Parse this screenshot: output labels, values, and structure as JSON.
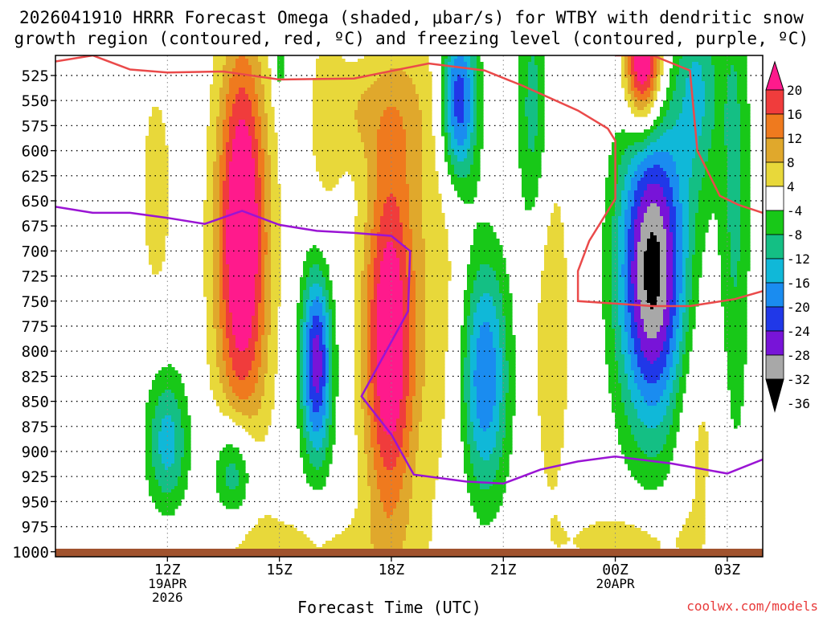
{
  "title_line1": "2026041910 HRRR Forecast Omega (shaded, μbar/s) for WTBY with dendritic snow",
  "title_line2": "growth region (contoured, red, ºC) and freezing level (contoured, purple, ºC)",
  "xlabel": "Forecast Time (UTC)",
  "credit": "coolwx.com/models",
  "chart_data": {
    "type": "heatmap",
    "x_hours": [
      9.0,
      12.0,
      15.0,
      18.0,
      21.0,
      24.0,
      27.0,
      27.95
    ],
    "y_pressure_hPa": [
      505,
      1005
    ],
    "y_ticks": [
      525,
      550,
      575,
      600,
      625,
      650,
      675,
      700,
      725,
      750,
      775,
      800,
      825,
      850,
      875,
      900,
      925,
      950,
      975,
      1000
    ],
    "x_ticks": [
      {
        "hour": 12,
        "lines": [
          "12Z",
          "19APR",
          "2026"
        ]
      },
      {
        "hour": 15,
        "lines": [
          "15Z"
        ]
      },
      {
        "hour": 18,
        "lines": [
          "18Z"
        ]
      },
      {
        "hour": 21,
        "lines": [
          "21Z"
        ]
      },
      {
        "hour": 24,
        "lines": [
          "00Z",
          "20APR"
        ]
      },
      {
        "hour": 27,
        "lines": [
          "03Z"
        ]
      }
    ],
    "colorbar": {
      "labels": [
        "20",
        "16",
        "12",
        "8",
        "4",
        "-4",
        "-8",
        "-12",
        "-16",
        "-20",
        "-24",
        "-28",
        "-32",
        "-36"
      ],
      "colors": [
        "#ff1a8c",
        "#f03c3c",
        "#ef7a1e",
        "#e0a82c",
        "#e8d83a",
        "#ffffff",
        "#18c818",
        "#14bf84",
        "#10b8d8",
        "#1a8cf0",
        "#2038e8",
        "#7814d8",
        "#a8a8a8",
        "#000000"
      ]
    },
    "omega_fields": [
      {
        "name": "upper-updraft-west",
        "x": 14.0,
        "p": 700,
        "sx": 0.55,
        "sp": 150,
        "amp": 21
      },
      {
        "name": "upper-updraft-west-core",
        "x": 14.0,
        "p": 660,
        "sx": 0.35,
        "sp": 110,
        "amp": 8
      },
      {
        "name": "updraft-18z",
        "x": 17.95,
        "p": 790,
        "sx": 0.5,
        "sp": 130,
        "amp": 26
      },
      {
        "name": "updraft-18z-upper",
        "x": 18.3,
        "p": 560,
        "sx": 0.55,
        "sp": 60,
        "amp": 6
      },
      {
        "name": "updraft-12z-col",
        "x": 11.7,
        "p": 640,
        "sx": 0.3,
        "sp": 80,
        "amp": 7
      },
      {
        "name": "updraft-17z-band",
        "x": 17.1,
        "p": 560,
        "sx": 0.55,
        "sp": 40,
        "amp": 6
      },
      {
        "name": "updraft-top-00z",
        "x": 24.75,
        "p": 515,
        "sx": 0.35,
        "sp": 45,
        "amp": 30
      },
      {
        "name": "updraft-low-2230",
        "x": 22.3,
        "p": 780,
        "sx": 0.35,
        "sp": 130,
        "amp": 8
      },
      {
        "name": "updraft-low-2000",
        "x": 19.3,
        "p": 700,
        "sx": 0.5,
        "sp": 220,
        "amp": 6
      },
      {
        "name": "updraft-low-2600",
        "x": 26.2,
        "p": 880,
        "sx": 0.45,
        "sp": 90,
        "amp": 6
      },
      {
        "name": "updraft-low-2400",
        "x": 24.3,
        "p": 990,
        "sx": 1.2,
        "sp": 25,
        "amp": 7
      },
      {
        "name": "updraft-low-1500",
        "x": 15.5,
        "p": 995,
        "sx": 2.0,
        "sp": 30,
        "amp": 5
      },
      {
        "name": "updraft-1600",
        "x": 16.2,
        "p": 590,
        "sx": 0.4,
        "sp": 120,
        "amp": 5
      },
      {
        "name": "downdraft-1600",
        "x": 16.0,
        "p": 810,
        "sx": 0.3,
        "sp": 70,
        "amp": -27
      },
      {
        "name": "downdraft-0015",
        "x": 25.0,
        "p": 720,
        "sx": 0.65,
        "sp": 110,
        "amp": -34
      },
      {
        "name": "downdraft-2030",
        "x": 20.5,
        "p": 825,
        "sx": 0.45,
        "sp": 85,
        "amp": -20
      },
      {
        "name": "downdraft-1930-upper",
        "x": 19.8,
        "p": 550,
        "sx": 0.35,
        "sp": 60,
        "amp": -25
      },
      {
        "name": "downdraft-sw",
        "x": 12.0,
        "p": 890,
        "sx": 0.4,
        "sp": 50,
        "amp": -14
      },
      {
        "name": "downdraft-1400",
        "x": 13.8,
        "p": 920,
        "sx": 0.4,
        "sp": 40,
        "amp": -16
      },
      {
        "name": "downdraft-2130",
        "x": 21.8,
        "p": 560,
        "sx": 0.3,
        "sp": 90,
        "amp": -10
      },
      {
        "name": "downdraft-0230",
        "x": 27.2,
        "p": 640,
        "sx": 0.3,
        "sp": 200,
        "amp": -9
      },
      {
        "name": "downdraft-0030-upper",
        "x": 26.2,
        "p": 540,
        "sx": 0.4,
        "sp": 70,
        "amp": -12
      },
      {
        "name": "downdraft-1500-top",
        "x": 15.0,
        "p": 510,
        "sx": 0.12,
        "sp": 30,
        "amp": -8
      }
    ],
    "dgz_contour_red": [
      [
        9.0,
        511
      ],
      [
        10.0,
        505
      ],
      [
        11.0,
        519
      ],
      [
        12.0,
        522
      ],
      [
        13.5,
        521
      ],
      [
        15.0,
        529
      ],
      [
        17.0,
        528
      ],
      [
        19.0,
        513
      ],
      [
        20.5,
        520
      ],
      [
        21.5,
        535
      ],
      [
        23.0,
        560
      ],
      [
        23.8,
        578
      ],
      [
        24.0,
        590
      ],
      [
        24.0,
        648
      ],
      [
        23.3,
        690
      ],
      [
        23.0,
        720
      ],
      [
        23.0,
        750
      ],
      [
        25.0,
        755
      ],
      [
        26.0,
        755
      ],
      [
        27.2,
        748
      ],
      [
        27.95,
        740
      ]
    ],
    "dgz_contour_red_upper": [
      [
        24.0,
        505
      ],
      [
        25.0,
        505
      ],
      [
        26.0,
        520
      ],
      [
        26.2,
        600
      ],
      [
        26.8,
        645
      ],
      [
        27.3,
        654
      ],
      [
        27.95,
        662
      ]
    ],
    "freezing_level_purple": [
      [
        9.0,
        656
      ],
      [
        10.0,
        662
      ],
      [
        11.0,
        662
      ],
      [
        12.0,
        667
      ],
      [
        13.0,
        673
      ],
      [
        14.0,
        660
      ],
      [
        15.0,
        674
      ],
      [
        16.0,
        680
      ],
      [
        17.0,
        682
      ],
      [
        18.0,
        685
      ],
      [
        18.5,
        700
      ],
      [
        18.45,
        760
      ],
      [
        17.2,
        845
      ],
      [
        18.0,
        883
      ],
      [
        18.6,
        923
      ],
      [
        20.0,
        930
      ],
      [
        21.0,
        932
      ],
      [
        22.0,
        918
      ],
      [
        23.0,
        910
      ],
      [
        24.0,
        905
      ],
      [
        25.5,
        912
      ],
      [
        27.0,
        922
      ],
      [
        27.95,
        908
      ]
    ]
  }
}
